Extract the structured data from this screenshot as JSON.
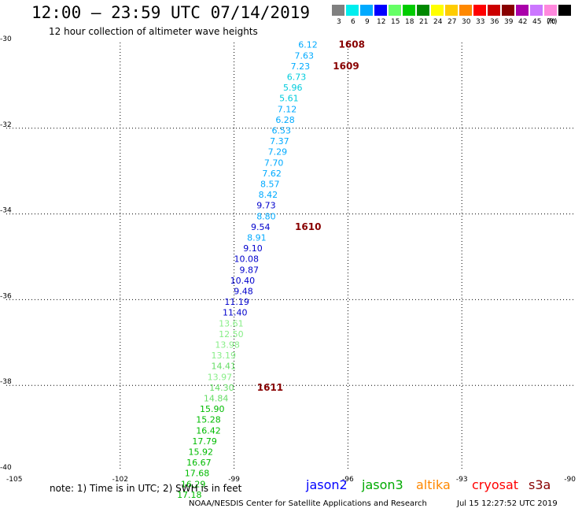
{
  "header": {
    "title": "12:00 – 23:59 UTC 07/14/2019",
    "subtitle": "12 hour collection of altimeter wave heights"
  },
  "color_scale": {
    "unit": "(ft)",
    "bins": [
      {
        "label": "3",
        "color": "#808080"
      },
      {
        "label": "6",
        "color": "#00eeee"
      },
      {
        "label": "9",
        "color": "#00aaff"
      },
      {
        "label": "12",
        "color": "#0000ff"
      },
      {
        "label": "15",
        "color": "#66ff66"
      },
      {
        "label": "18",
        "color": "#00cc00"
      },
      {
        "label": "21",
        "color": "#008800"
      },
      {
        "label": "24",
        "color": "#ffff00"
      },
      {
        "label": "27",
        "color": "#ffcc00"
      },
      {
        "label": "30",
        "color": "#ff8800"
      },
      {
        "label": "33",
        "color": "#ff0000"
      },
      {
        "label": "36",
        "color": "#cc0000"
      },
      {
        "label": "39",
        "color": "#880000"
      },
      {
        "label": "42",
        "color": "#aa00aa"
      },
      {
        "label": "45",
        "color": "#cc77ff"
      },
      {
        "label": "70",
        "color": "#ff88dd"
      },
      {
        "label": "",
        "color": "#000000"
      }
    ]
  },
  "map": {
    "lon_range": [
      -105,
      -90
    ],
    "lat_range": [
      -40,
      -30
    ],
    "x_ticks": [
      "-105",
      "-102",
      "-99",
      "-96",
      "-93",
      "-90"
    ],
    "y_ticks": [
      "-30",
      "-32",
      "-34",
      "-36",
      "-38",
      "-40"
    ],
    "grid": true
  },
  "chart_data": {
    "type": "scatter",
    "x_label": "",
    "y_label": "",
    "xlim": [
      -105,
      -90
    ],
    "ylim": [
      -40,
      -30
    ],
    "points": [
      {
        "lon": -96.8,
        "lat": -30.05,
        "value": "6.12",
        "color": "#00aaff"
      },
      {
        "lon": -96.9,
        "lat": -30.3,
        "value": "7.63",
        "color": "#00aaff"
      },
      {
        "lon": -97.0,
        "lat": -30.55,
        "value": "7.23",
        "color": "#00aaff"
      },
      {
        "lon": -97.1,
        "lat": -30.8,
        "value": "6.73",
        "color": "#00ccdd"
      },
      {
        "lon": -97.2,
        "lat": -31.05,
        "value": "5.96",
        "color": "#00ccdd"
      },
      {
        "lon": -97.3,
        "lat": -31.3,
        "value": "5.61",
        "color": "#00ccdd"
      },
      {
        "lon": -97.35,
        "lat": -31.55,
        "value": "7.12",
        "color": "#00aaff"
      },
      {
        "lon": -97.4,
        "lat": -31.8,
        "value": "6.28",
        "color": "#00aaff"
      },
      {
        "lon": -97.5,
        "lat": -32.05,
        "value": "6.53",
        "color": "#00aaff"
      },
      {
        "lon": -97.55,
        "lat": -32.3,
        "value": "7.37",
        "color": "#00aaff"
      },
      {
        "lon": -97.6,
        "lat": -32.55,
        "value": "7.29",
        "color": "#00aaff"
      },
      {
        "lon": -97.7,
        "lat": -32.8,
        "value": "7.70",
        "color": "#00aaff"
      },
      {
        "lon": -97.75,
        "lat": -33.05,
        "value": "7.62",
        "color": "#00aaff"
      },
      {
        "lon": -97.8,
        "lat": -33.3,
        "value": "8.57",
        "color": "#00aaff"
      },
      {
        "lon": -97.85,
        "lat": -33.55,
        "value": "8.42",
        "color": "#00aaff"
      },
      {
        "lon": -97.9,
        "lat": -33.8,
        "value": "9.73",
        "color": "#0000cc"
      },
      {
        "lon": -97.9,
        "lat": -34.05,
        "value": "8.80",
        "color": "#00aaff"
      },
      {
        "lon": -98.05,
        "lat": -34.3,
        "value": "9.54",
        "color": "#0000cc"
      },
      {
        "lon": -98.15,
        "lat": -34.55,
        "value": "8.91",
        "color": "#00aaff"
      },
      {
        "lon": -98.25,
        "lat": -34.8,
        "value": "9.10",
        "color": "#0000cc"
      },
      {
        "lon": -98.35,
        "lat": -35.05,
        "value": "10.08",
        "color": "#0000cc"
      },
      {
        "lon": -98.35,
        "lat": -35.3,
        "value": "9.87",
        "color": "#0000cc"
      },
      {
        "lon": -98.45,
        "lat": -35.55,
        "value": "10.40",
        "color": "#0000cc"
      },
      {
        "lon": -98.5,
        "lat": -35.8,
        "value": "9.48",
        "color": "#0000cc"
      },
      {
        "lon": -98.6,
        "lat": -36.05,
        "value": "11.19",
        "color": "#0000cc"
      },
      {
        "lon": -98.65,
        "lat": -36.3,
        "value": "11.40",
        "color": "#0000cc"
      },
      {
        "lon": -98.75,
        "lat": -36.55,
        "value": "13.61",
        "color": "#88ee88"
      },
      {
        "lon": -98.75,
        "lat": -36.8,
        "value": "12.50",
        "color": "#88ee88"
      },
      {
        "lon": -98.85,
        "lat": -37.05,
        "value": "13.98",
        "color": "#88ee88"
      },
      {
        "lon": -98.95,
        "lat": -37.3,
        "value": "13.19",
        "color": "#88ee88"
      },
      {
        "lon": -98.95,
        "lat": -37.55,
        "value": "14.41",
        "color": "#66dd66"
      },
      {
        "lon": -99.05,
        "lat": -37.8,
        "value": "13.97",
        "color": "#88ee88"
      },
      {
        "lon": -99.0,
        "lat": -38.05,
        "value": "14.30",
        "color": "#66dd66"
      },
      {
        "lon": -99.15,
        "lat": -38.3,
        "value": "14.84",
        "color": "#66dd66"
      },
      {
        "lon": -99.25,
        "lat": -38.55,
        "value": "15.90",
        "color": "#00bb00"
      },
      {
        "lon": -99.35,
        "lat": -38.8,
        "value": "15.28",
        "color": "#00bb00"
      },
      {
        "lon": -99.35,
        "lat": -39.05,
        "value": "16.42",
        "color": "#00bb00"
      },
      {
        "lon": -99.45,
        "lat": -39.3,
        "value": "17.79",
        "color": "#00bb00"
      },
      {
        "lon": -99.55,
        "lat": -39.55,
        "value": "15.92",
        "color": "#00bb00"
      },
      {
        "lon": -99.6,
        "lat": -39.8,
        "value": "16.67",
        "color": "#00bb00"
      },
      {
        "lon": -99.65,
        "lat": -40.05,
        "value": "17.68",
        "color": "#00bb00"
      },
      {
        "lon": -99.75,
        "lat": -40.3,
        "value": "16.29",
        "color": "#00bb00"
      },
      {
        "lon": -99.85,
        "lat": -40.55,
        "value": "17.18",
        "color": "#00bb00"
      }
    ],
    "time_labels": [
      {
        "lon": -95.9,
        "lat": -30.05,
        "text": "1608"
      },
      {
        "lon": -96.05,
        "lat": -30.55,
        "text": "1609"
      },
      {
        "lon": -97.05,
        "lat": -34.3,
        "text": "1610"
      },
      {
        "lon": -98.05,
        "lat": -38.05,
        "text": "1611"
      }
    ]
  },
  "notes": {
    "note": "note:  1) Time is in UTC;  2) SWH is in feet",
    "credit": "NOAA/NESDIS Center for Satellite Applications and Research",
    "timestamp": "Jul 15 12:27:52 UTC 2019"
  },
  "satellites": [
    {
      "name": "jason2",
      "color": "#0000ff"
    },
    {
      "name": "jason3",
      "color": "#00aa00"
    },
    {
      "name": "altika",
      "color": "#ff8800"
    },
    {
      "name": "cryosat",
      "color": "#ff0000"
    },
    {
      "name": "s3a",
      "color": "#880000"
    }
  ],
  "time_label_color": "#880000"
}
